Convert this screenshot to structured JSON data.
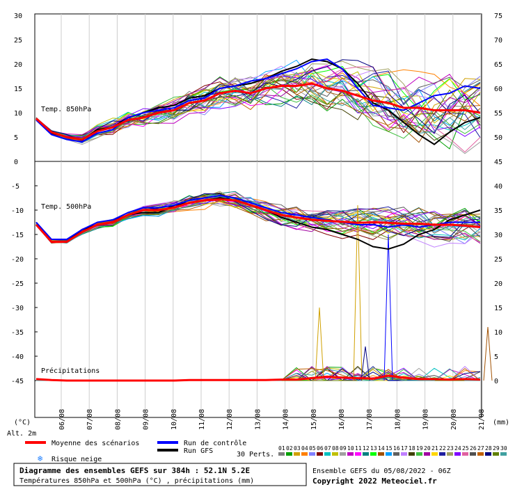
{
  "chart_data": {
    "type": "line",
    "title": "Diagramme des ensembles GEFS sur 384h : 52.1N 5.2E",
    "subtitle": "Températures 850hPa et 500hPa (°C) , précipitations (mm)",
    "run_info": "Ensemble GEFS du 05/08/2022 - 06Z",
    "copyright": "Copyright 2022 Meteociel.fr",
    "altitude_label": "Alt. 2m",
    "left_unit": "(°C)",
    "right_unit": "(mm)",
    "x_tick_labels": [
      "06/08",
      "07/08",
      "08/08",
      "09/08",
      "10/08",
      "11/08",
      "12/08",
      "13/08",
      "14/08",
      "15/08",
      "16/08",
      "17/08",
      "18/08",
      "19/08",
      "20/08",
      "21/08"
    ],
    "upper_panel": {
      "label": "Temp. 850hPa",
      "left_ticks": [
        "30",
        "25",
        "20",
        "15",
        "10",
        "5",
        "0"
      ],
      "right_ticks": [
        "75",
        "70",
        "65",
        "60",
        "55",
        "50",
        "45"
      ],
      "ylim": [
        0,
        30
      ]
    },
    "lower_panel": {
      "label": "Temp. 500hPa",
      "precip_label": "Précipitations",
      "left_ticks": [
        "-5",
        "-10",
        "-15",
        "-20",
        "-25",
        "-30",
        "-35",
        "-40",
        "-45"
      ],
      "right_ticks": [
        "40",
        "35",
        "30",
        "25",
        "20",
        "15",
        "10",
        "5",
        "0"
      ],
      "ylim": [
        -50,
        -3
      ]
    },
    "legend": {
      "mean": "Moyenne des scénarios",
      "control": "Run de contrôle",
      "gfs": "Run GFS",
      "snow": "Risque neige",
      "perts_label": "30 Perts.",
      "pert_ids": [
        "01",
        "02",
        "03",
        "04",
        "05",
        "06",
        "07",
        "08",
        "09",
        "10",
        "11",
        "12",
        "13",
        "14",
        "15",
        "16",
        "17",
        "18",
        "19",
        "20",
        "21",
        "22",
        "23",
        "24",
        "25",
        "26",
        "27",
        "28",
        "29",
        "30"
      ]
    },
    "colors": {
      "mean": "#ff0000",
      "control": "#0000ff",
      "gfs": "#000000",
      "perts": [
        "#808080",
        "#00a000",
        "#d0a000",
        "#ff8000",
        "#8080ff",
        "#800000",
        "#00c0c0",
        "#c0c000",
        "#a0a0a0",
        "#c000c0",
        "#ff00ff",
        "#008080",
        "#00ff00",
        "#a05000",
        "#00a0ff",
        "#606060",
        "#c080ff",
        "#404000",
        "#40c040",
        "#a000a0",
        "#ffd700",
        "#2020a0",
        "#a0a060",
        "#8000ff",
        "#e060a0",
        "#505050",
        "#c06000",
        "#000080",
        "#608000",
        "#40a0a0"
      ]
    },
    "mean_t850": [
      8.8,
      6.0,
      5.0,
      4.5,
      6.2,
      7.0,
      8.5,
      9.0,
      10.0,
      10.5,
      12.0,
      12.5,
      14.0,
      14.5,
      14.0,
      15.0,
      15.5,
      15.5,
      16.0,
      15.0,
      14.5,
      13.5,
      12.5,
      12.0,
      11.0,
      11.0,
      10.5,
      10.5,
      10.5,
      10.0
    ],
    "control_t850": [
      8.5,
      5.5,
      4.5,
      4.0,
      5.8,
      6.5,
      9.0,
      10.0,
      10.5,
      11.0,
      12.5,
      13.0,
      15.0,
      15.5,
      16.5,
      17.0,
      18.0,
      19.0,
      20.5,
      21.0,
      19.0,
      15.0,
      11.5,
      11.0,
      10.5,
      12.0,
      13.5,
      14.0,
      15.5,
      15.0
    ],
    "gfs_t850": [
      8.5,
      5.8,
      5.0,
      4.5,
      6.5,
      7.0,
      9.0,
      10.0,
      11.0,
      11.5,
      13.0,
      13.5,
      15.0,
      15.5,
      16.0,
      17.0,
      18.5,
      19.5,
      21.0,
      20.5,
      19.0,
      16.0,
      12.0,
      10.5,
      8.0,
      5.5,
      3.5,
      6.0,
      8.0,
      9.0
    ],
    "mean_t500": [
      -13.0,
      -16.5,
      -16.5,
      -14.5,
      -13.0,
      -12.5,
      -11.0,
      -10.0,
      -10.0,
      -9.5,
      -8.5,
      -8.0,
      -7.8,
      -8.0,
      -9.0,
      -10.0,
      -11.0,
      -11.5,
      -12.0,
      -12.2,
      -12.4,
      -12.6,
      -12.5,
      -12.6,
      -12.8,
      -12.8,
      -13.0,
      -13.0,
      -13.2,
      -13.5
    ],
    "control_t500": [
      -12.5,
      -16.0,
      -16.0,
      -14.0,
      -12.5,
      -12.0,
      -10.5,
      -9.5,
      -9.5,
      -9.0,
      -8.0,
      -7.5,
      -7.0,
      -7.5,
      -8.5,
      -9.5,
      -10.5,
      -11.0,
      -11.5,
      -12.0,
      -12.5,
      -13.0,
      -13.0,
      -13.5,
      -13.0,
      -13.5,
      -13.0,
      -12.5,
      -12.5,
      -12.5
    ],
    "gfs_t500": [
      -12.5,
      -16.5,
      -16.5,
      -14.0,
      -13.0,
      -12.5,
      -11.0,
      -10.5,
      -10.5,
      -9.0,
      -8.5,
      -8.0,
      -7.5,
      -8.0,
      -9.0,
      -10.0,
      -11.5,
      -12.5,
      -13.5,
      -14.0,
      -15.0,
      -16.0,
      -17.5,
      -18.0,
      -17.0,
      -15.0,
      -14.0,
      -12.0,
      -11.0,
      -10.0
    ],
    "mean_precip": [
      0.3,
      0.1,
      0.0,
      0.0,
      0.0,
      0.0,
      0.0,
      0.0,
      0.0,
      0.0,
      0.1,
      0.1,
      0.1,
      0.1,
      0.1,
      0.1,
      0.2,
      0.2,
      0.5,
      0.8,
      0.6,
      0.5,
      0.4,
      1.0,
      0.6,
      0.3,
      0.3,
      0.2,
      0.3,
      0.2
    ]
  }
}
